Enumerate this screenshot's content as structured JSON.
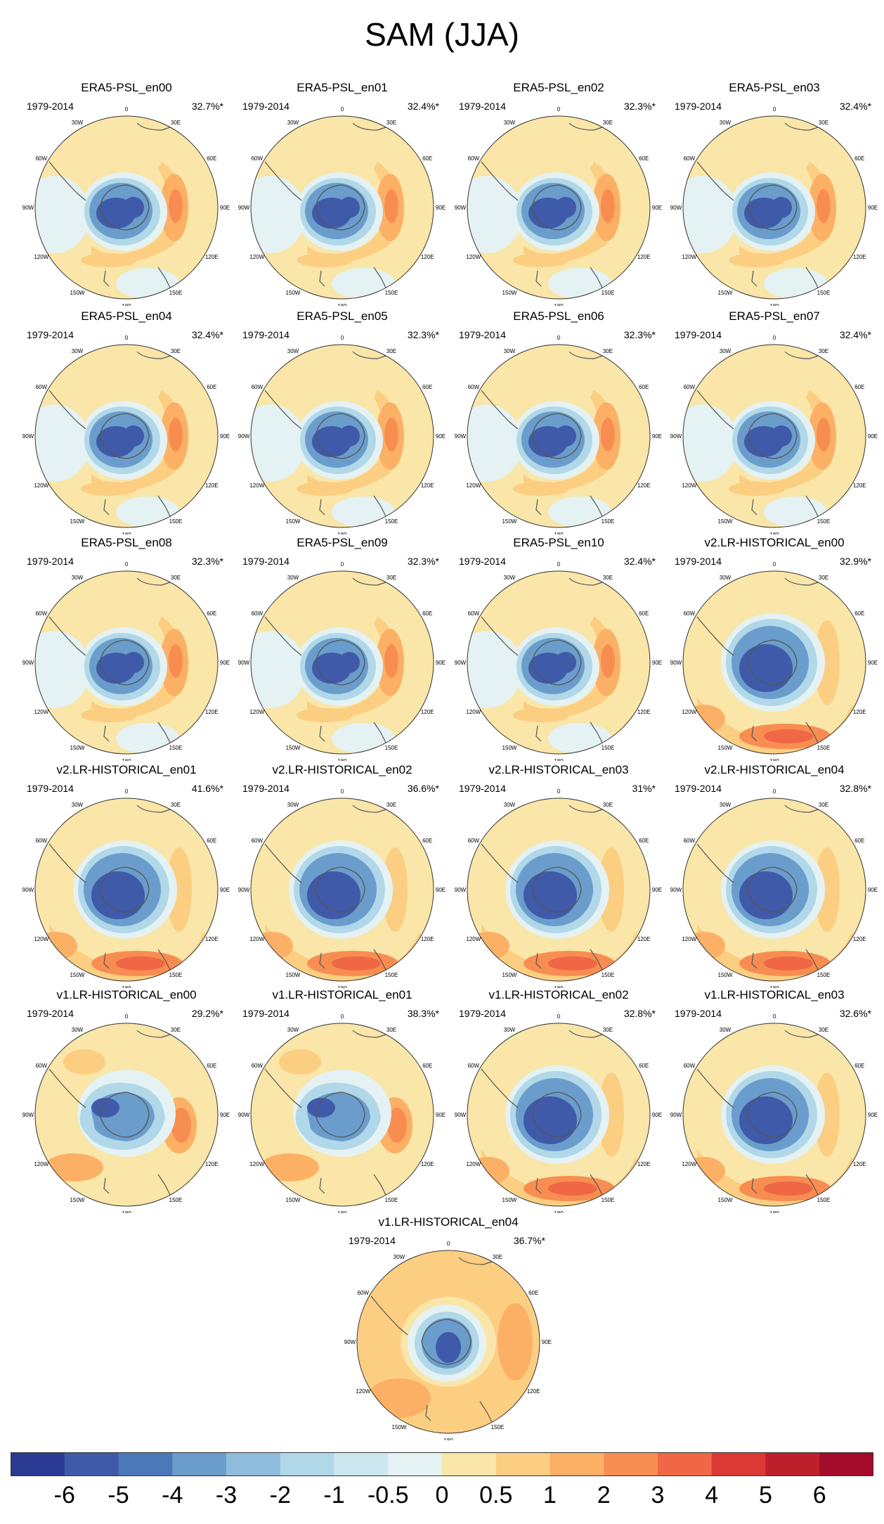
{
  "title": "SAM (JJA)",
  "period_label": "1979-2014",
  "lon_labels": [
    "0",
    "30E",
    "60E",
    "90E",
    "120E",
    "150E",
    "180",
    "150W",
    "120W",
    "90W",
    "60W",
    "30W"
  ],
  "panels": [
    {
      "name": "ERA5-PSL_en00",
      "variance": "32.7%*",
      "pattern": "era5"
    },
    {
      "name": "ERA5-PSL_en01",
      "variance": "32.4%*",
      "pattern": "era5"
    },
    {
      "name": "ERA5-PSL_en02",
      "variance": "32.3%*",
      "pattern": "era5"
    },
    {
      "name": "ERA5-PSL_en03",
      "variance": "32.4%*",
      "pattern": "era5"
    },
    {
      "name": "ERA5-PSL_en04",
      "variance": "32.4%*",
      "pattern": "era5"
    },
    {
      "name": "ERA5-PSL_en05",
      "variance": "32.3%*",
      "pattern": "era5"
    },
    {
      "name": "ERA5-PSL_en06",
      "variance": "32.3%*",
      "pattern": "era5"
    },
    {
      "name": "ERA5-PSL_en07",
      "variance": "32.4%*",
      "pattern": "era5"
    },
    {
      "name": "ERA5-PSL_en08",
      "variance": "32.3%*",
      "pattern": "era5"
    },
    {
      "name": "ERA5-PSL_en09",
      "variance": "32.3%*",
      "pattern": "era5"
    },
    {
      "name": "ERA5-PSL_en10",
      "variance": "32.4%*",
      "pattern": "era5"
    },
    {
      "name": "v2.LR-HISTORICAL_en00",
      "variance": "32.9%*",
      "pattern": "model"
    },
    {
      "name": "v2.LR-HISTORICAL_en01",
      "variance": "41.6%*",
      "pattern": "model"
    },
    {
      "name": "v2.LR-HISTORICAL_en02",
      "variance": "36.6%*",
      "pattern": "model"
    },
    {
      "name": "v2.LR-HISTORICAL_en03",
      "variance": "31%*",
      "pattern": "model"
    },
    {
      "name": "v2.LR-HISTORICAL_en04",
      "variance": "32.8%*",
      "pattern": "model"
    },
    {
      "name": "v1.LR-HISTORICAL_en00",
      "variance": "29.2%*",
      "pattern": "wave"
    },
    {
      "name": "v1.LR-HISTORICAL_en01",
      "variance": "38.3%*",
      "pattern": "wave"
    },
    {
      "name": "v1.LR-HISTORICAL_en02",
      "variance": "32.8%*",
      "pattern": "model"
    },
    {
      "name": "v1.LR-HISTORICAL_en03",
      "variance": "32.6%*",
      "pattern": "model"
    },
    {
      "name": "v1.LR-HISTORICAL_en04",
      "variance": "36.7%*",
      "pattern": "compact"
    }
  ],
  "colorbar": {
    "labels": [
      "-6",
      "-5",
      "-4",
      "-3",
      "-2",
      "-1",
      "-0.5",
      "0",
      "0.5",
      "1",
      "2",
      "3",
      "4",
      "5",
      "6"
    ],
    "colors": [
      "#2b3a93",
      "#3f5aa8",
      "#4a78b8",
      "#6a9dcb",
      "#8fbcdc",
      "#b1d8e9",
      "#cde7f0",
      "#e4f2f3",
      "#f9e6a8",
      "#fcce82",
      "#fcb066",
      "#f88d52",
      "#ef6744",
      "#da3a33",
      "#bd1f2b",
      "#a30b2a"
    ]
  },
  "contour_colors": {
    "deep_neg": "#3f5aa8",
    "mid_neg": "#6a9dcb",
    "light_neg": "#b1d8e9",
    "zero": "#e4f2f3",
    "weak_pos": "#f9e6a8",
    "pos": "#fcce82",
    "mid_pos": "#fcb066",
    "strong_pos": "#f88d52",
    "very_strong": "#ef6744"
  }
}
